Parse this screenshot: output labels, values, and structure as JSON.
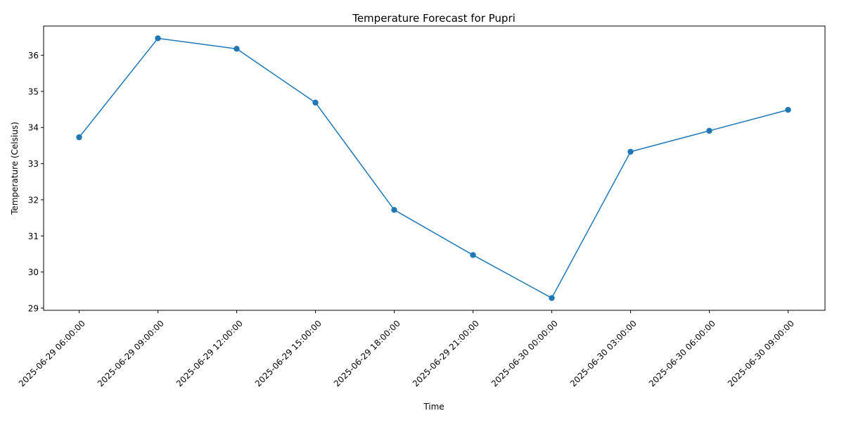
{
  "chart_data": {
    "type": "line",
    "title": "Temperature Forecast for Pupri",
    "xlabel": "Time",
    "ylabel": "Temperature (Celsius)",
    "categories": [
      "2025-06-29 06:00:00",
      "2025-06-29 09:00:00",
      "2025-06-29 12:00:00",
      "2025-06-29 15:00:00",
      "2025-06-29 18:00:00",
      "2025-06-29 21:00:00",
      "2025-06-30 00:00:00",
      "2025-06-30 03:00:00",
      "2025-06-30 06:00:00",
      "2025-06-30 09:00:00"
    ],
    "series": [
      {
        "values": [
          33.73,
          36.47,
          36.18,
          34.69,
          31.72,
          30.47,
          29.28,
          33.33,
          33.91,
          34.49
        ],
        "color": "#1f77b4",
        "marker": "circle"
      }
    ],
    "ylim": [
      28.94,
      36.81
    ],
    "yticks": [
      29,
      30,
      31,
      32,
      33,
      34,
      35,
      36
    ],
    "grid": false,
    "xtick_rotation": 45
  }
}
